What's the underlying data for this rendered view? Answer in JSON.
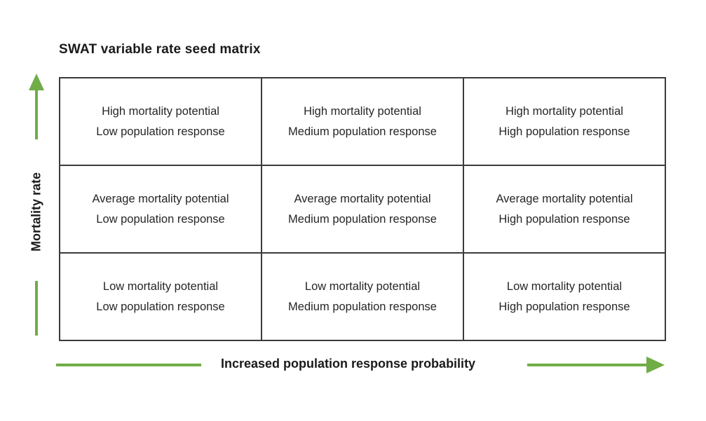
{
  "title": "SWAT variable rate seed matrix",
  "y_axis": {
    "label": "Mortality rate"
  },
  "x_axis": {
    "label": "Increased population response probability"
  },
  "colors": {
    "arrow_green": "#70AD47",
    "grid_border": "#3b3b3b",
    "cell_text": "#262626"
  },
  "matrix": {
    "rows": 3,
    "cols": 3,
    "cells": [
      {
        "line1": "High mortality potential",
        "line2": "Low population response"
      },
      {
        "line1": "High mortality potential",
        "line2": "Medium population response"
      },
      {
        "line1": "High mortality potential",
        "line2": "High population response"
      },
      {
        "line1": "Average mortality potential",
        "line2": "Low population response"
      },
      {
        "line1": "Average mortality potential",
        "line2": "Medium population response"
      },
      {
        "line1": "Average mortality potential",
        "line2": "High population response"
      },
      {
        "line1": "Low mortality potential",
        "line2": "Low population response"
      },
      {
        "line1": "Low mortality potential",
        "line2": "Medium population response"
      },
      {
        "line1": "Low mortality potential",
        "line2": "High population response"
      }
    ]
  }
}
